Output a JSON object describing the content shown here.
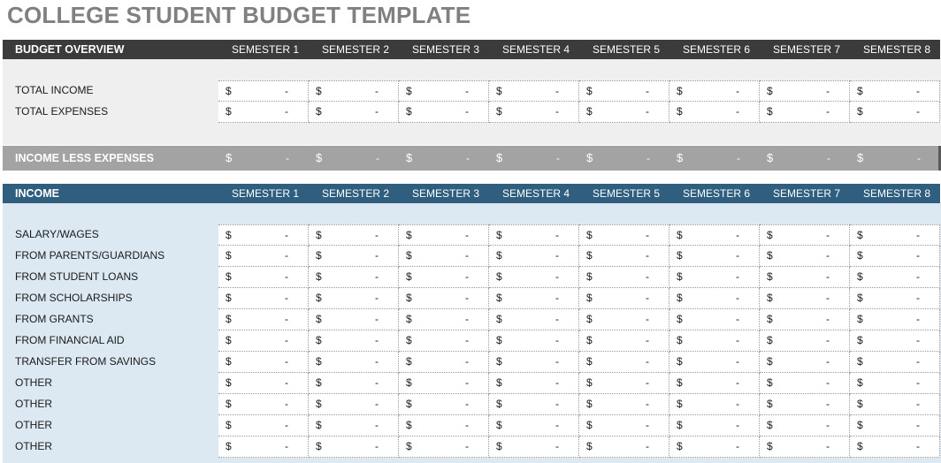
{
  "title": "COLLEGE STUDENT BUDGET TEMPLATE",
  "overview": {
    "header": "BUDGET OVERVIEW",
    "semesters": [
      "SEMESTER 1",
      "SEMESTER 2",
      "SEMESTER 3",
      "SEMESTER 4",
      "SEMESTER 5",
      "SEMESTER 6",
      "SEMESTER 7",
      "SEMESTER 8"
    ],
    "rows": [
      {
        "label": "TOTAL INCOME",
        "currency": "$",
        "values": [
          "-",
          "-",
          "-",
          "-",
          "-",
          "-",
          "-",
          "-"
        ]
      },
      {
        "label": "TOTAL EXPENSES",
        "currency": "$",
        "values": [
          "-",
          "-",
          "-",
          "-",
          "-",
          "-",
          "-",
          "-"
        ]
      }
    ]
  },
  "net": {
    "label": "INCOME LESS EXPENSES",
    "currency": "$",
    "values": [
      "-",
      "-",
      "-",
      "-",
      "-",
      "-",
      "-",
      "-"
    ]
  },
  "income": {
    "header": "INCOME",
    "semesters": [
      "SEMESTER 1",
      "SEMESTER 2",
      "SEMESTER 3",
      "SEMESTER 4",
      "SEMESTER 5",
      "SEMESTER 6",
      "SEMESTER 7",
      "SEMESTER 8"
    ],
    "rows": [
      {
        "label": "SALARY/WAGES",
        "currency": "$",
        "values": [
          "-",
          "-",
          "-",
          "-",
          "-",
          "-",
          "-",
          "-"
        ]
      },
      {
        "label": "FROM PARENTS/GUARDIANS",
        "currency": "$",
        "values": [
          "-",
          "-",
          "-",
          "-",
          "-",
          "-",
          "-",
          "-"
        ]
      },
      {
        "label": "FROM STUDENT LOANS",
        "currency": "$",
        "values": [
          "-",
          "-",
          "-",
          "-",
          "-",
          "-",
          "-",
          "-"
        ]
      },
      {
        "label": "FROM SCHOLARSHIPS",
        "currency": "$",
        "values": [
          "-",
          "-",
          "-",
          "-",
          "-",
          "-",
          "-",
          "-"
        ]
      },
      {
        "label": "FROM GRANTS",
        "currency": "$",
        "values": [
          "-",
          "-",
          "-",
          "-",
          "-",
          "-",
          "-",
          "-"
        ]
      },
      {
        "label": "FROM FINANCIAL AID",
        "currency": "$",
        "values": [
          "-",
          "-",
          "-",
          "-",
          "-",
          "-",
          "-",
          "-"
        ]
      },
      {
        "label": "TRANSFER FROM SAVINGS",
        "currency": "$",
        "values": [
          "-",
          "-",
          "-",
          "-",
          "-",
          "-",
          "-",
          "-"
        ]
      },
      {
        "label": "OTHER",
        "currency": "$",
        "values": [
          "-",
          "-",
          "-",
          "-",
          "-",
          "-",
          "-",
          "-"
        ]
      },
      {
        "label": "OTHER",
        "currency": "$",
        "values": [
          "-",
          "-",
          "-",
          "-",
          "-",
          "-",
          "-",
          "-"
        ]
      },
      {
        "label": "OTHER",
        "currency": "$",
        "values": [
          "-",
          "-",
          "-",
          "-",
          "-",
          "-",
          "-",
          "-"
        ]
      },
      {
        "label": "OTHER",
        "currency": "$",
        "values": [
          "-",
          "-",
          "-",
          "-",
          "-",
          "-",
          "-",
          "-"
        ]
      }
    ]
  },
  "colors": {
    "title": "#808080",
    "overview_header": "#3b3b3b",
    "overview_band": "#efefef",
    "net_bar": "#a3a3a3",
    "income_header": "#2f5e7f",
    "income_band": "#dce9f3"
  }
}
